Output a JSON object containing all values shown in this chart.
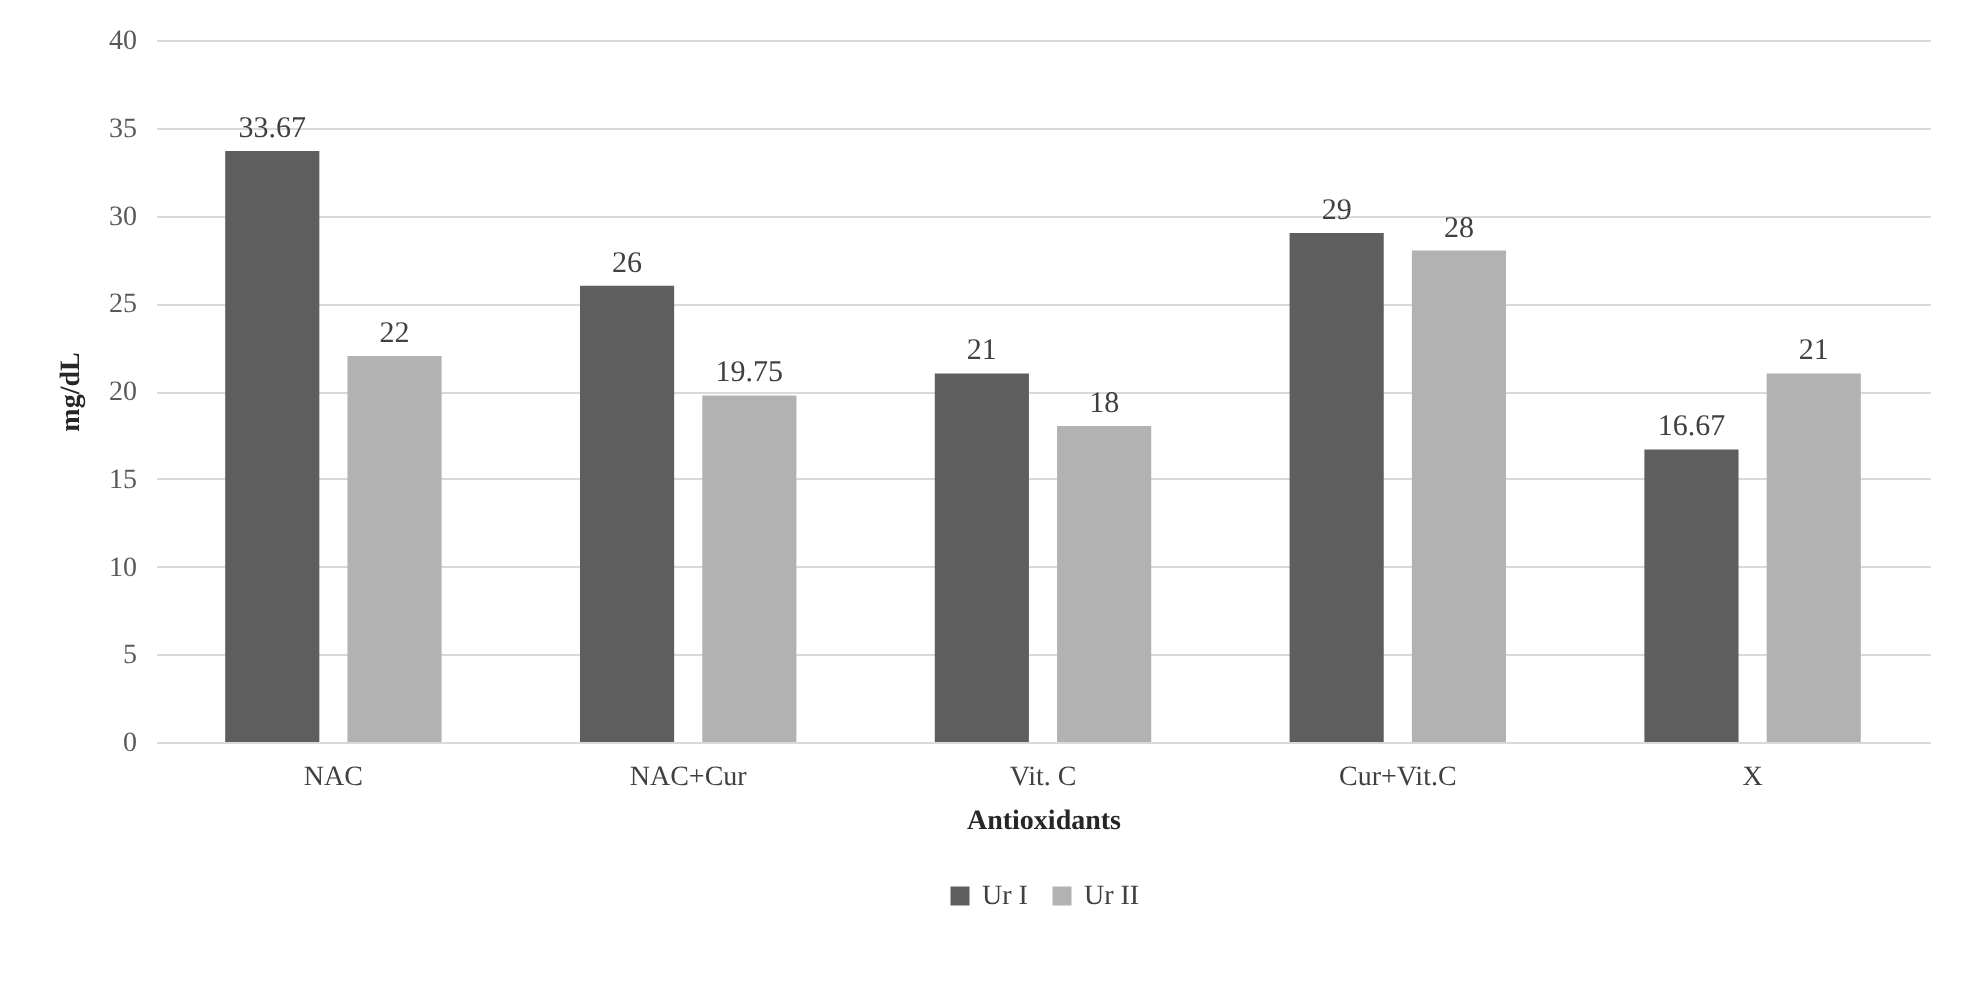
{
  "chart_data": {
    "type": "bar",
    "xlabel": "Antioxidants",
    "ylabel": "mg/dL",
    "categories": [
      "NAC",
      "NAC+Cur",
      "Vit. C",
      "Cur+Vit.C",
      "X"
    ],
    "series": [
      {
        "name": "Ur I",
        "color": "#5e5e5e",
        "values": [
          33.67,
          26,
          21,
          29,
          16.67
        ]
      },
      {
        "name": "Ur II",
        "color": "#b2b2b2",
        "values": [
          22,
          19.75,
          18,
          28,
          21
        ]
      }
    ],
    "ylim": [
      0,
      40
    ],
    "yticks": [
      0,
      5,
      10,
      15,
      20,
      25,
      30,
      35,
      40
    ],
    "grid": "y",
    "legend": "bottom",
    "data_labels": true
  }
}
